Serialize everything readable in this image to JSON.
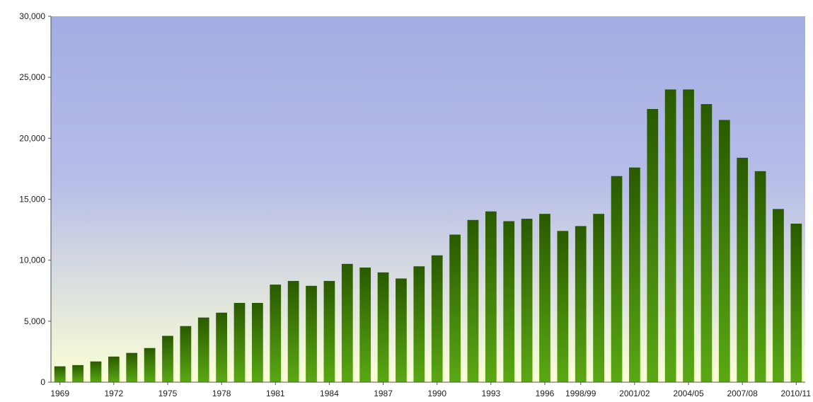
{
  "chart_data": {
    "type": "bar",
    "categories": [
      "1969",
      "1970",
      "1971",
      "1972",
      "1973",
      "1974",
      "1975",
      "1976",
      "1977",
      "1978",
      "1979",
      "1980",
      "1981",
      "1982",
      "1983",
      "1984",
      "1985",
      "1986",
      "1987",
      "1988",
      "1989",
      "1990",
      "1991",
      "1992",
      "1993",
      "1994",
      "1995",
      "1996",
      "1997",
      "1998/99",
      "1999/00",
      "2000/01",
      "2001/02",
      "2002/03",
      "2003/04",
      "2004/05",
      "2005/06",
      "2006/07",
      "2007/08",
      "2008/09",
      "2009/10",
      "2010/11"
    ],
    "x_tick_labels": [
      "1969",
      "1972",
      "1975",
      "1978",
      "1981",
      "1984",
      "1987",
      "1990",
      "1993",
      "1996",
      "1998/99",
      "2001/02",
      "2004/05",
      "2007/08",
      "2010/11"
    ],
    "x_tick_indices": [
      0,
      3,
      6,
      9,
      12,
      15,
      18,
      21,
      24,
      27,
      29,
      32,
      35,
      38,
      41
    ],
    "series": [
      {
        "values": [
          1300,
          1400,
          1700,
          2100,
          2400,
          2800,
          3800,
          4600,
          5300,
          5700,
          6500,
          6500,
          8000,
          8300,
          7900,
          8300,
          9700,
          9400,
          9000,
          8500,
          9500,
          10400,
          12100,
          13300,
          14000,
          13200,
          13400,
          13800,
          12400,
          12800,
          13800,
          16900,
          17600,
          22400,
          24000,
          24000,
          22800,
          21500,
          18400,
          17300,
          14200,
          13000
        ]
      }
    ],
    "y_tick_labels": [
      "0",
      "5,000",
      "10,000",
      "15,000",
      "20,000",
      "25,000",
      "30,000"
    ],
    "y_ticks": [
      0,
      5000,
      10000,
      15000,
      20000,
      25000,
      30000
    ],
    "ylim": [
      0,
      30000
    ],
    "title": "",
    "xlabel": "",
    "ylabel": "",
    "grid": false,
    "legend": "none",
    "colors": {
      "bar_top": "#2a5a00",
      "bar_bottom": "#5aa814",
      "bg_top": "#a3ade4",
      "bg_mid": "#b7bde8",
      "bg_bottom": "#fbffd6",
      "axis": "#555555"
    }
  }
}
